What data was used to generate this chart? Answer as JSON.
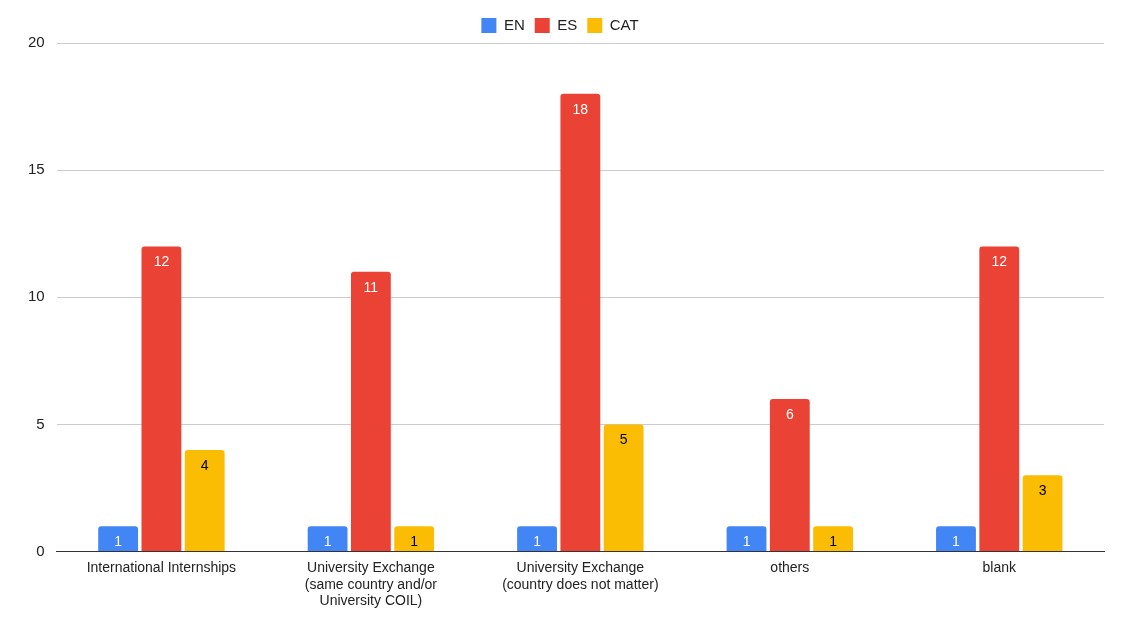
{
  "chart_data": {
    "type": "bar",
    "categories": [
      "International Internships",
      "University Exchange (same country and/or University COIL)",
      "University Exchange (country does not matter)",
      "others",
      "blank"
    ],
    "series": [
      {
        "name": "EN",
        "color": "#4285f4",
        "values": [
          1,
          1,
          1,
          1,
          1
        ]
      },
      {
        "name": "ES",
        "color": "#ea4335",
        "values": [
          12,
          11,
          18,
          6,
          12
        ]
      },
      {
        "name": "CAT",
        "color": "#fbbc04",
        "values": [
          4,
          1,
          5,
          1,
          3
        ]
      }
    ],
    "ylim": [
      0,
      20
    ],
    "yticks": [
      0,
      5,
      10,
      15,
      20
    ],
    "grid": "y",
    "legend": "top",
    "data_labels": true
  }
}
